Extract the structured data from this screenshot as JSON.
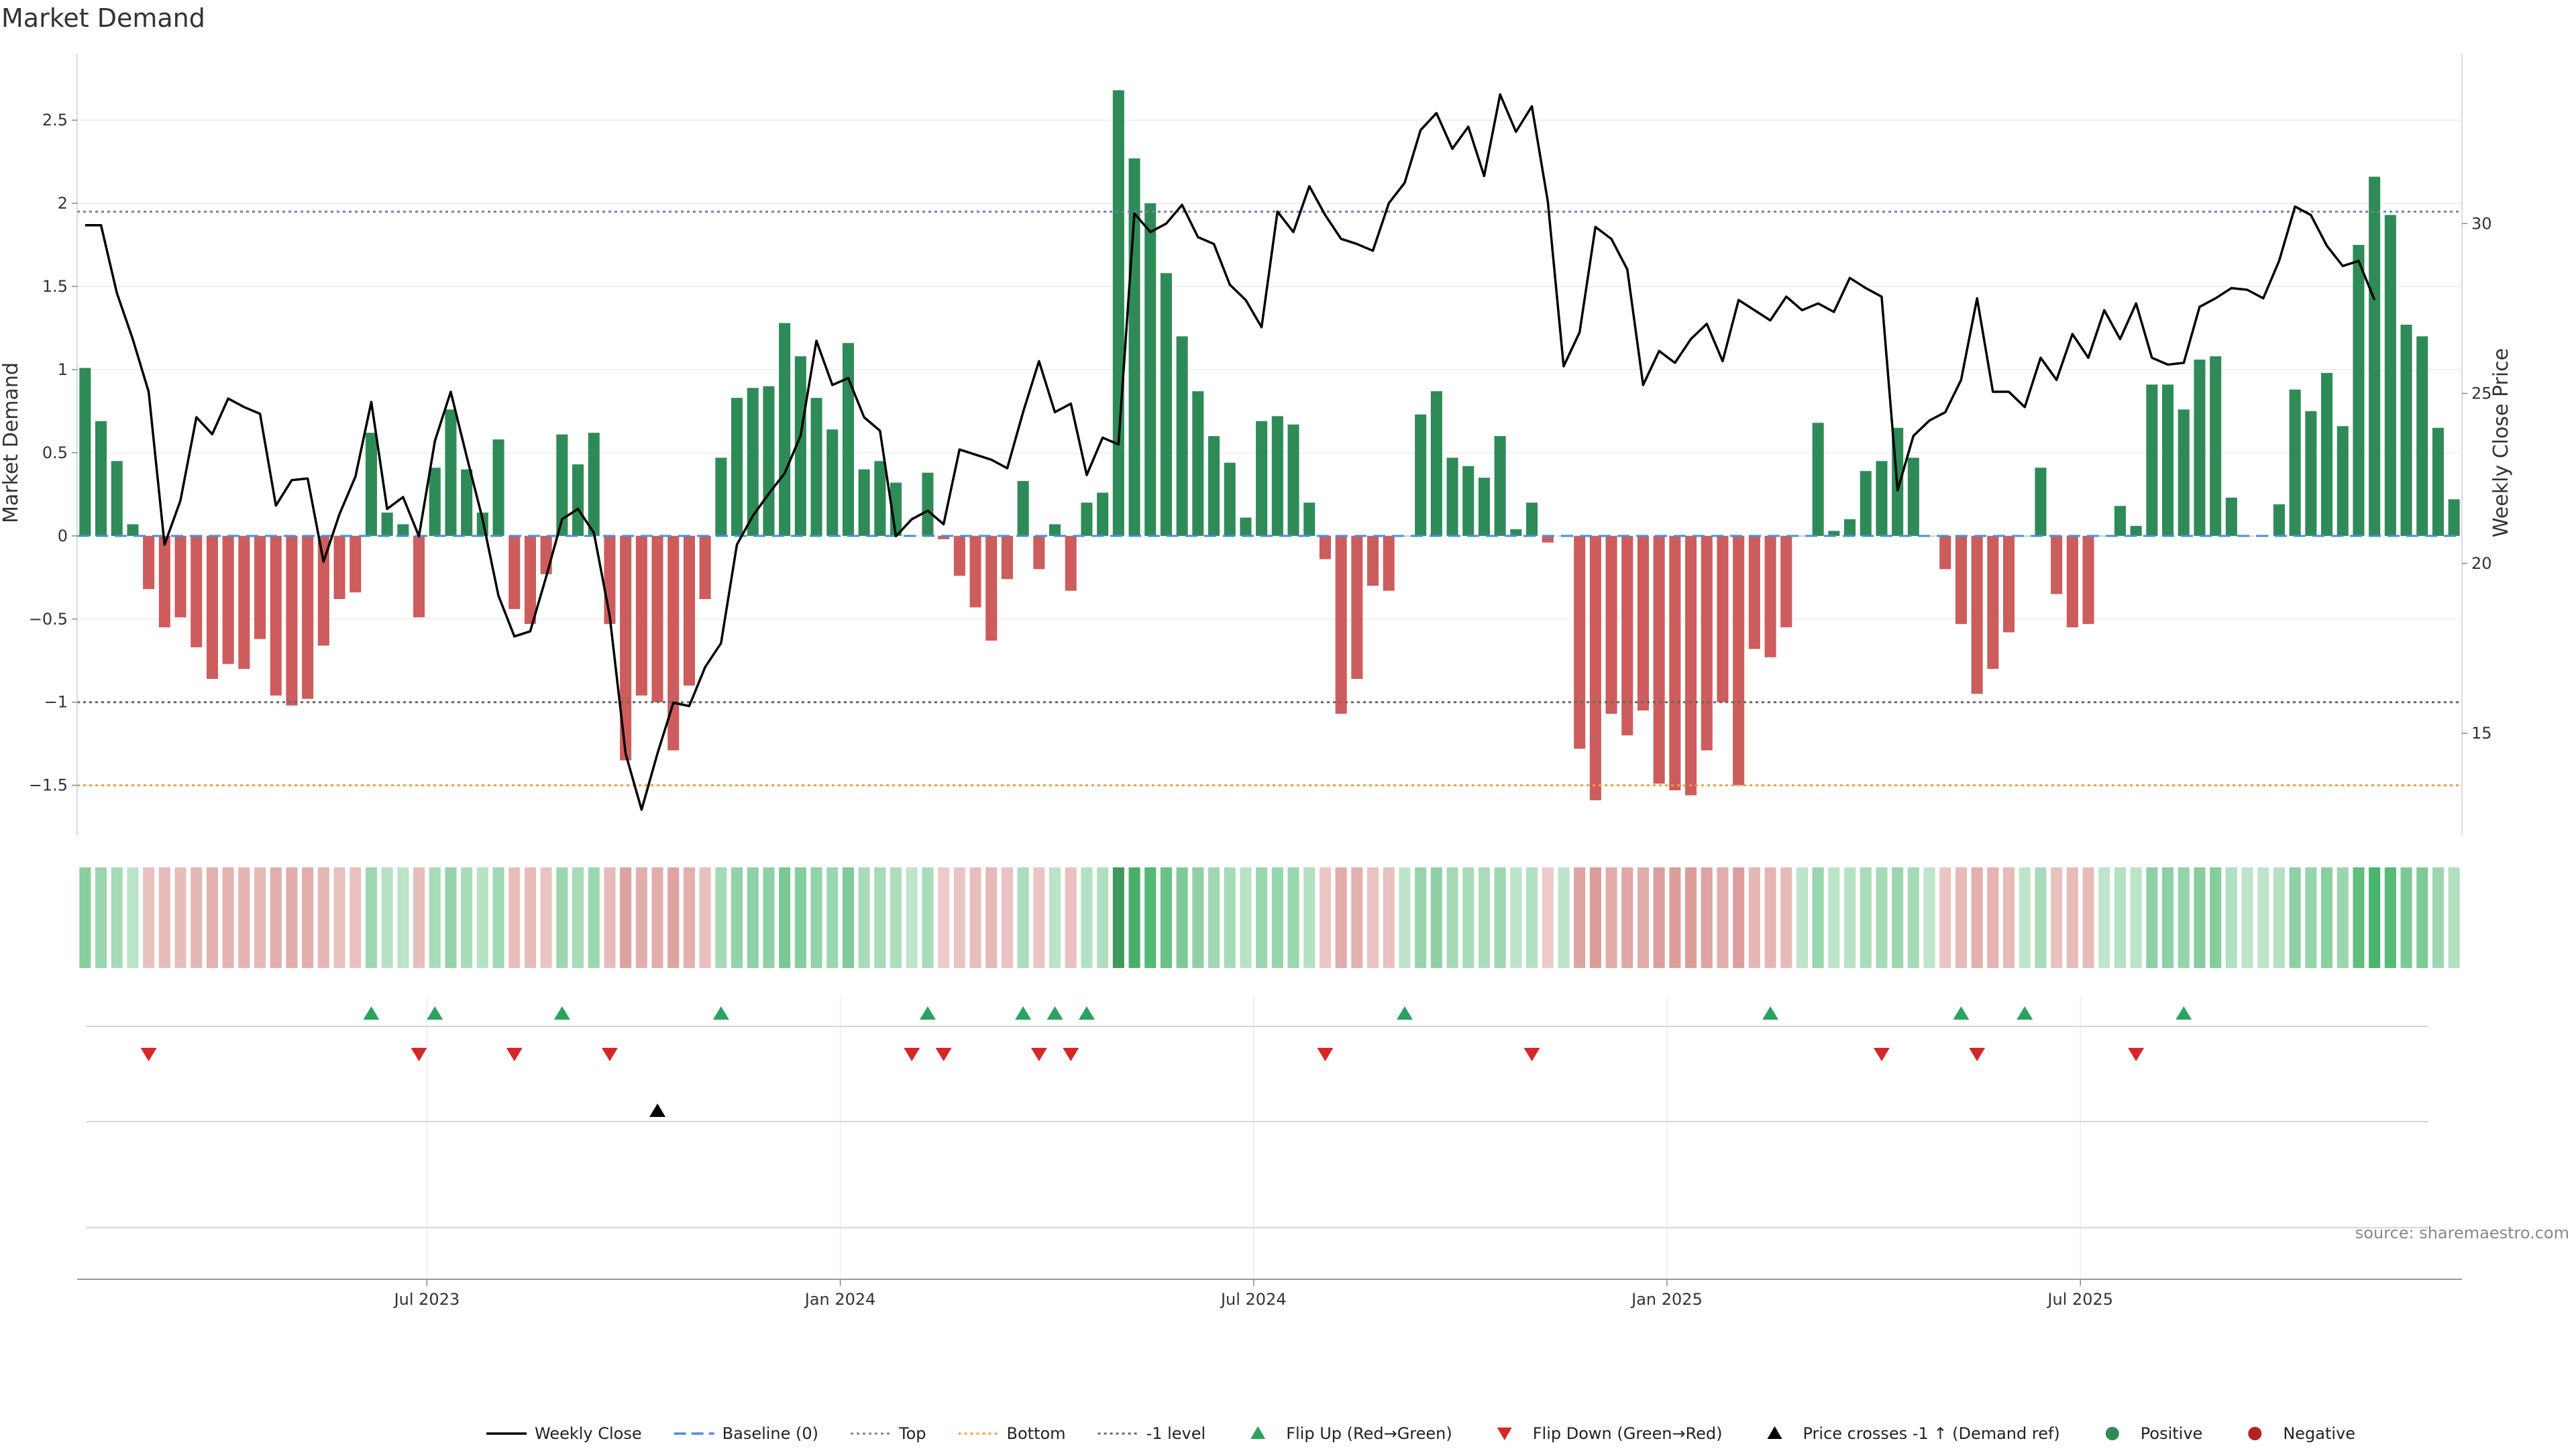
{
  "chart_data": {
    "type": "bar",
    "title": "Market Demand",
    "ylabel": "Market Demand",
    "y2label": "Weekly Close Price",
    "ylim": [
      -1.8,
      2.9
    ],
    "y2lim": [
      12,
      35
    ],
    "yticks": [
      -1.5,
      -1,
      -0.5,
      0,
      0.5,
      1,
      1.5,
      2,
      2.5
    ],
    "ytick_labels": [
      "−1.5",
      "−1",
      "−0.5",
      "0",
      "0.5",
      "1",
      "1.5",
      "2",
      "2.5"
    ],
    "y2ticks": [
      15,
      20,
      25,
      30
    ],
    "xticks": [
      {
        "index": 21.5,
        "label": "Jul 2023"
      },
      {
        "index": 47.5,
        "label": "Jan 2024"
      },
      {
        "index": 73.5,
        "label": "Jul 2024"
      },
      {
        "index": 99.5,
        "label": "Jan 2025"
      },
      {
        "index": 125.5,
        "label": "Jul 2025"
      }
    ],
    "reference_lines": {
      "top": 1.95,
      "bottom": -1.5,
      "minus_one": -1
    },
    "demand": [
      1.01,
      0.69,
      0.45,
      0.07,
      -0.32,
      -0.55,
      -0.49,
      -0.67,
      -0.86,
      -0.77,
      -0.8,
      -0.62,
      -0.96,
      -1.02,
      -0.98,
      -0.66,
      -0.38,
      -0.34,
      0.62,
      0.14,
      0.07,
      -0.49,
      0.41,
      0.76,
      0.4,
      0.14,
      0.58,
      -0.44,
      -0.53,
      -0.23,
      0.61,
      0.43,
      0.62,
      -0.53,
      -1.35,
      -0.96,
      -1.0,
      -1.29,
      -0.9,
      -0.38,
      0.47,
      0.83,
      0.89,
      0.9,
      1.28,
      1.08,
      0.83,
      0.64,
      1.16,
      0.4,
      0.45,
      0.32,
      0.0,
      0.38,
      -0.02,
      -0.24,
      -0.43,
      -0.63,
      -0.26,
      0.33,
      -0.2,
      0.07,
      -0.33,
      0.2,
      0.26,
      2.68,
      2.27,
      2.0,
      1.58,
      1.2,
      0.87,
      0.6,
      0.44,
      0.11,
      0.69,
      0.72,
      0.67,
      0.2,
      -0.14,
      -1.07,
      -0.86,
      -0.3,
      -0.33,
      0.0,
      0.73,
      0.87,
      0.47,
      0.42,
      0.35,
      0.6,
      0.04,
      0.2,
      -0.04,
      0.0,
      -1.28,
      -1.59,
      -1.07,
      -1.2,
      -1.05,
      -1.49,
      -1.53,
      -1.56,
      -1.29,
      -1.0,
      -1.5,
      -0.68,
      -0.73,
      -0.55,
      0.0,
      0.68,
      0.03,
      0.1,
      0.39,
      0.45,
      0.65,
      0.47,
      0.0,
      -0.2,
      -0.53,
      -0.95,
      -0.8,
      -0.58,
      0.0,
      0.41,
      -0.35,
      -0.55,
      -0.53,
      0.0,
      0.18,
      0.06,
      0.91,
      0.91,
      0.76,
      1.06,
      1.08,
      0.23,
      0.0,
      0.0,
      0.19,
      0.88,
      0.75,
      0.98,
      0.66,
      1.75,
      2.16,
      1.93,
      1.27,
      1.2,
      0.65,
      0.22
    ],
    "weekly_close": [
      29.95,
      29.95,
      27.95,
      26.6,
      25.05,
      20.55,
      21.85,
      24.3,
      23.8,
      24.85,
      24.6,
      24.4,
      21.7,
      22.45,
      22.5,
      20.05,
      21.45,
      22.55,
      24.75,
      21.6,
      21.95,
      20.8,
      23.6,
      25.05,
      23.15,
      21.3,
      19.05,
      17.85,
      18.0,
      19.6,
      21.3,
      21.6,
      20.9,
      18.45,
      14.4,
      12.75,
      14.4,
      15.9,
      15.8,
      16.95,
      17.65,
      20.55,
      21.4,
      22.05,
      22.65,
      23.75,
      26.55,
      25.25,
      25.45,
      24.3,
      23.9,
      20.8,
      21.3,
      21.55,
      21.15,
      23.35,
      23.2,
      23.05,
      22.8,
      24.45,
      25.95,
      24.45,
      24.7,
      22.6,
      23.7,
      23.5,
      30.3,
      29.75,
      30.0,
      30.55,
      29.6,
      29.4,
      28.2,
      27.75,
      26.95,
      30.35,
      29.75,
      31.1,
      30.25,
      29.55,
      29.4,
      29.2,
      30.6,
      31.2,
      32.75,
      33.25,
      32.2,
      32.85,
      31.4,
      33.8,
      32.7,
      33.45,
      30.65,
      25.8,
      26.8,
      29.9,
      29.55,
      28.65,
      25.25,
      26.25,
      25.9,
      26.6,
      27.05,
      25.95,
      27.75,
      27.45,
      27.15,
      27.85,
      27.45,
      27.65,
      27.4,
      28.4,
      28.1,
      27.85,
      22.15,
      23.75,
      24.2,
      24.45,
      25.4,
      27.8,
      25.05,
      25.05,
      24.6,
      26.05,
      25.4,
      26.75,
      26.05,
      27.45,
      26.6,
      27.65,
      26.05,
      25.85,
      25.9,
      27.55,
      27.8,
      28.1,
      28.05,
      27.8,
      28.9,
      30.5,
      30.25,
      29.35,
      28.75,
      28.9,
      27.75
    ],
    "flip_up": [
      18,
      22,
      30,
      40,
      53,
      59,
      61,
      63,
      83,
      106,
      118,
      122,
      132
    ],
    "flip_down": [
      4,
      21,
      27,
      33,
      52,
      54,
      60,
      62,
      78,
      91,
      113,
      119,
      129
    ],
    "price_cross": [
      36
    ],
    "source": "source: sharemaestro.com",
    "legend": [
      {
        "label": "Weekly Close",
        "kind": "line",
        "color": "#000000"
      },
      {
        "label": "Baseline (0)",
        "kind": "dash",
        "color": "#4a90d9"
      },
      {
        "label": "Top",
        "kind": "dot",
        "color": "#7b7fb8"
      },
      {
        "label": "Bottom",
        "kind": "dot",
        "color": "#e8a33d"
      },
      {
        "label": "-1 level",
        "kind": "dot",
        "color": "#666666"
      },
      {
        "label": "Flip Up (Red→Green)",
        "kind": "triangle-up",
        "color": "#2ca25f"
      },
      {
        "label": "Flip Down (Green→Red)",
        "kind": "triangle-down",
        "color": "#d62728"
      },
      {
        "label": "Price crosses -1 ↑ (Demand ref)",
        "kind": "triangle-up",
        "color": "#000000"
      },
      {
        "label": "Positive",
        "kind": "circle",
        "color": "#2e8b57"
      },
      {
        "label": "Negative",
        "kind": "circle",
        "color": "#b22222"
      }
    ],
    "colors": {
      "positive_bar": "#2e8b57",
      "negative_bar": "#cd5c5c",
      "top_line": "#7b7fb8",
      "bottom_line": "#e8a33d",
      "minus_one_line": "#666666",
      "baseline": "#4a90d9"
    }
  }
}
